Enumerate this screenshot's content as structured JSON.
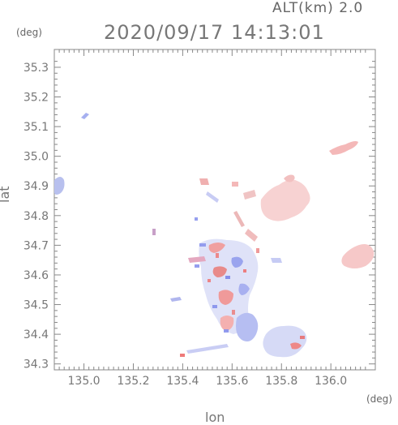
{
  "header": {
    "altitude_label": "ALT(km) 2.0",
    "timestamp": "2020/09/17 14:13:01"
  },
  "axes": {
    "y_unit": "(deg)",
    "x_unit": "(deg)",
    "y_title": "lat",
    "x_title": "lon",
    "x_ticks": [
      "135.0",
      "135.2",
      "135.4",
      "135.6",
      "135.8",
      "136.0"
    ],
    "y_ticks": [
      "35.3",
      "35.2",
      "35.1",
      "35.0",
      "34.9",
      "34.8",
      "34.7",
      "34.6",
      "34.5",
      "34.4",
      "34.3"
    ]
  },
  "map": {
    "lon_range": [
      134.88,
      136.18
    ],
    "lat_range": [
      34.28,
      35.36
    ],
    "colors": {
      "positive": "#f08080",
      "negative": "#8080f0",
      "frame": "#888888"
    }
  }
}
